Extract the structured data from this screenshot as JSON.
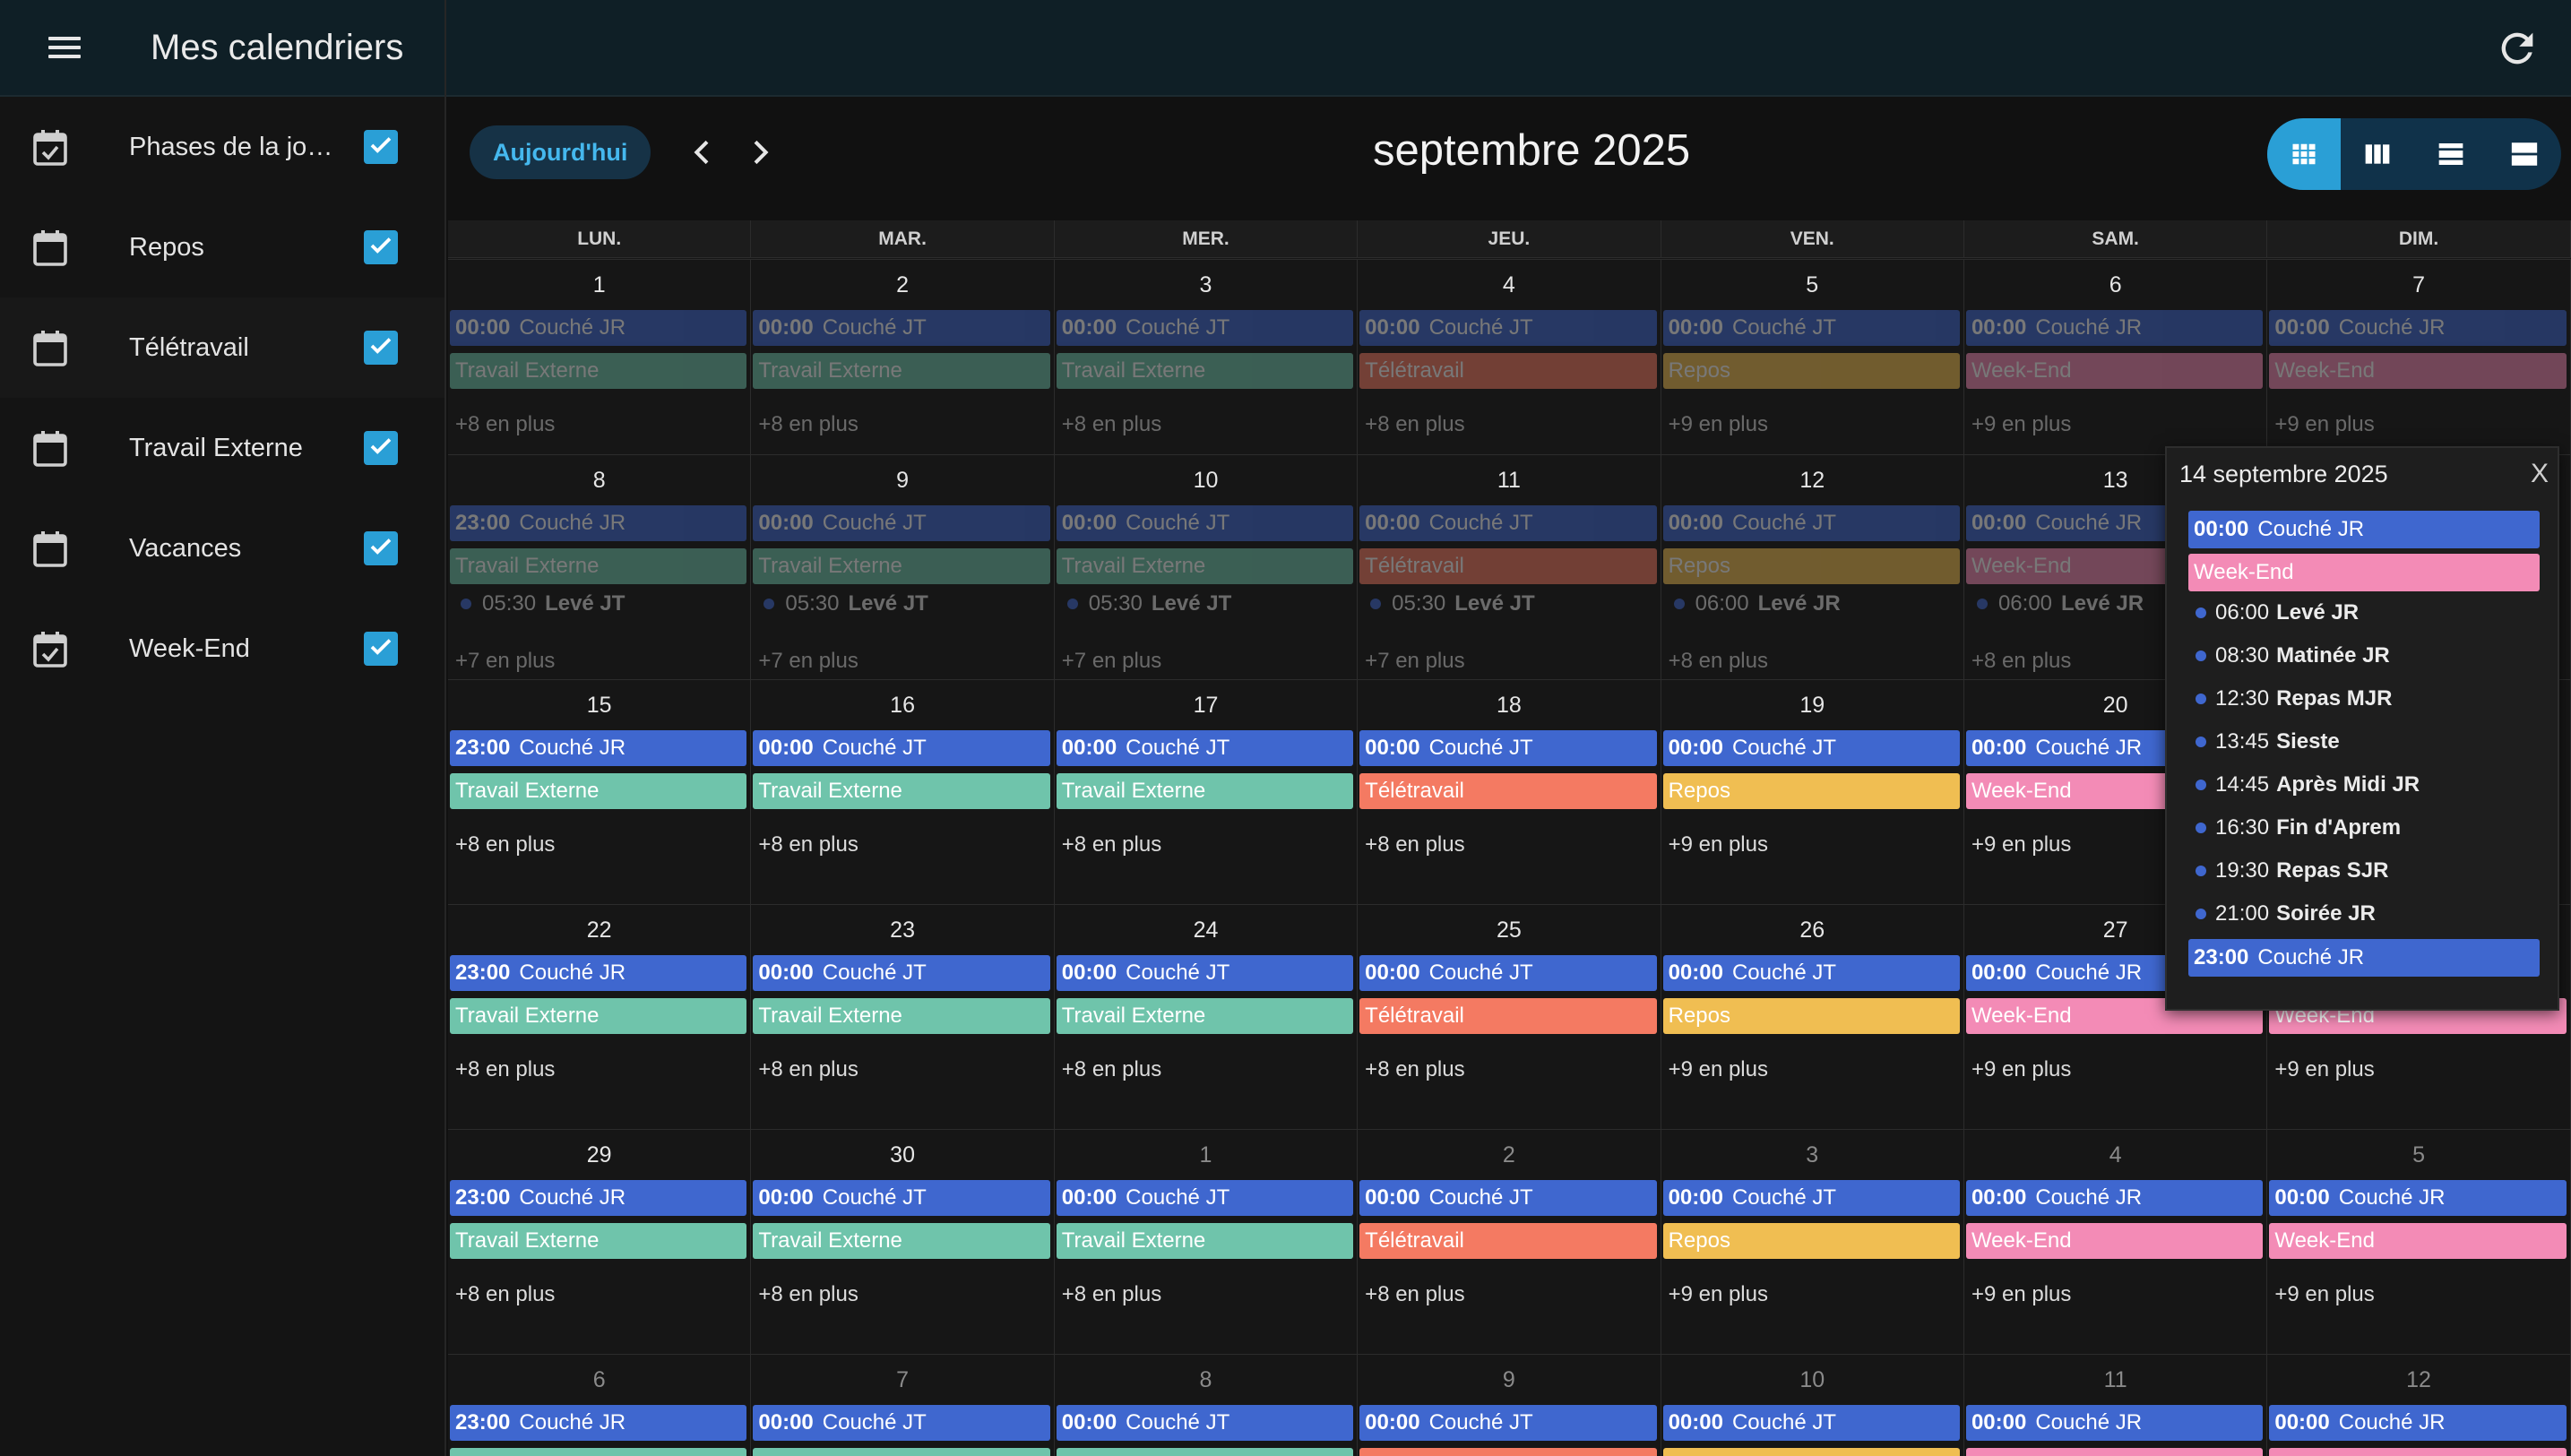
{
  "app": {
    "title": "Mes calendriers"
  },
  "sidebar": {
    "calendars": [
      {
        "label": "Phases de la jour...",
        "checked": true,
        "icon": "calendar-check-icon"
      },
      {
        "label": "Repos",
        "checked": true,
        "icon": "calendar-icon"
      },
      {
        "label": "Télétravail",
        "checked": true,
        "icon": "calendar-icon"
      },
      {
        "label": "Travail Externe",
        "checked": true,
        "icon": "calendar-icon"
      },
      {
        "label": "Vacances",
        "checked": true,
        "icon": "calendar-icon"
      },
      {
        "label": "Week-End",
        "checked": true,
        "icon": "calendar-check-icon"
      }
    ]
  },
  "toolbar": {
    "today_label": "Aujourd'hui",
    "month_title": "septembre 2025",
    "views": [
      "month-view-icon",
      "week-view-icon",
      "day-view-icon",
      "list-view-icon"
    ],
    "active_view": 0
  },
  "colors": {
    "accent": "#2a9fd6",
    "couche": "#3f67cf",
    "travail_externe": "#6fc4ab",
    "teletravail": "#f47a62",
    "repos": "#f0be52",
    "week_end": "#f38bb6"
  },
  "weekday_headers": [
    "LUN.",
    "MAR.",
    "MER.",
    "JEU.",
    "VEN.",
    "SAM.",
    "DIM."
  ],
  "weeks": [
    {
      "faded": true,
      "days": [
        {
          "num": "1",
          "ev1_time": "00:00",
          "ev1_title": "Couché JR",
          "ev2_title": "Travail Externe",
          "ev2_type": "travail_externe",
          "more": "+8 en plus"
        },
        {
          "num": "2",
          "ev1_time": "00:00",
          "ev1_title": "Couché JT",
          "ev2_title": "Travail Externe",
          "ev2_type": "travail_externe",
          "more": "+8 en plus"
        },
        {
          "num": "3",
          "ev1_time": "00:00",
          "ev1_title": "Couché JT",
          "ev2_title": "Travail Externe",
          "ev2_type": "travail_externe",
          "more": "+8 en plus"
        },
        {
          "num": "4",
          "ev1_time": "00:00",
          "ev1_title": "Couché JT",
          "ev2_title": "Télétravail",
          "ev2_type": "teletravail",
          "more": "+8 en plus"
        },
        {
          "num": "5",
          "ev1_time": "00:00",
          "ev1_title": "Couché JT",
          "ev2_title": "Repos",
          "ev2_type": "repos",
          "more": "+9 en plus"
        },
        {
          "num": "6",
          "ev1_time": "00:00",
          "ev1_title": "Couché JR",
          "ev2_title": "Week-End",
          "ev2_type": "week_end",
          "more": "+9 en plus"
        },
        {
          "num": "7",
          "ev1_time": "00:00",
          "ev1_title": "Couché JR",
          "ev2_title": "Week-End",
          "ev2_type": "week_end",
          "more": "+9 en plus"
        }
      ]
    },
    {
      "faded": true,
      "days": [
        {
          "num": "8",
          "ev1_time": "23:00",
          "ev1_title": "Couché JR",
          "ev2_title": "Travail Externe",
          "ev2_type": "travail_externe",
          "dot_time": "05:30",
          "dot_title": "Levé JT",
          "more": "+7 en plus"
        },
        {
          "num": "9",
          "ev1_time": "00:00",
          "ev1_title": "Couché JT",
          "ev2_title": "Travail Externe",
          "ev2_type": "travail_externe",
          "dot_time": "05:30",
          "dot_title": "Levé JT",
          "more": "+7 en plus"
        },
        {
          "num": "10",
          "ev1_time": "00:00",
          "ev1_title": "Couché JT",
          "ev2_title": "Travail Externe",
          "ev2_type": "travail_externe",
          "dot_time": "05:30",
          "dot_title": "Levé JT",
          "more": "+7 en plus"
        },
        {
          "num": "11",
          "ev1_time": "00:00",
          "ev1_title": "Couché JT",
          "ev2_title": "Télétravail",
          "ev2_type": "teletravail",
          "dot_time": "05:30",
          "dot_title": "Levé JT",
          "more": "+7 en plus"
        },
        {
          "num": "12",
          "ev1_time": "00:00",
          "ev1_title": "Couché JT",
          "ev2_title": "Repos",
          "ev2_type": "repos",
          "dot_time": "06:00",
          "dot_title": "Levé JR",
          "more": "+8 en plus"
        },
        {
          "num": "13",
          "ev1_time": "00:00",
          "ev1_title": "Couché JR",
          "ev2_title": "Week-End",
          "ev2_type": "week_end",
          "dot_time": "06:00",
          "dot_title": "Levé JR",
          "more": "+8 en plus"
        },
        {
          "num": "",
          "ev1_time": "",
          "ev1_title": "",
          "ev2_title": "",
          "ev2_type": "",
          "more": ""
        }
      ]
    },
    {
      "faded": false,
      "days": [
        {
          "num": "15",
          "ev1_time": "23:00",
          "ev1_title": "Couché JR",
          "ev2_title": "Travail Externe",
          "ev2_type": "travail_externe",
          "more": "+8 en plus"
        },
        {
          "num": "16",
          "ev1_time": "00:00",
          "ev1_title": "Couché JT",
          "ev2_title": "Travail Externe",
          "ev2_type": "travail_externe",
          "more": "+8 en plus"
        },
        {
          "num": "17",
          "ev1_time": "00:00",
          "ev1_title": "Couché JT",
          "ev2_title": "Travail Externe",
          "ev2_type": "travail_externe",
          "more": "+8 en plus"
        },
        {
          "num": "18",
          "ev1_time": "00:00",
          "ev1_title": "Couché JT",
          "ev2_title": "Télétravail",
          "ev2_type": "teletravail",
          "more": "+8 en plus"
        },
        {
          "num": "19",
          "ev1_time": "00:00",
          "ev1_title": "Couché JT",
          "ev2_title": "Repos",
          "ev2_type": "repos",
          "more": "+9 en plus"
        },
        {
          "num": "20",
          "ev1_time": "00:00",
          "ev1_title": "Couché JR",
          "ev2_title": "Week-End",
          "ev2_type": "week_end",
          "more": "+9 en plus"
        },
        {
          "num": "",
          "ev1_time": "",
          "ev1_title": "",
          "ev2_title": "",
          "ev2_type": "",
          "more": ""
        }
      ]
    },
    {
      "faded": false,
      "days": [
        {
          "num": "22",
          "ev1_time": "23:00",
          "ev1_title": "Couché JR",
          "ev2_title": "Travail Externe",
          "ev2_type": "travail_externe",
          "more": "+8 en plus"
        },
        {
          "num": "23",
          "ev1_time": "00:00",
          "ev1_title": "Couché JT",
          "ev2_title": "Travail Externe",
          "ev2_type": "travail_externe",
          "more": "+8 en plus"
        },
        {
          "num": "24",
          "ev1_time": "00:00",
          "ev1_title": "Couché JT",
          "ev2_title": "Travail Externe",
          "ev2_type": "travail_externe",
          "more": "+8 en plus"
        },
        {
          "num": "25",
          "ev1_time": "00:00",
          "ev1_title": "Couché JT",
          "ev2_title": "Télétravail",
          "ev2_type": "teletravail",
          "more": "+8 en plus"
        },
        {
          "num": "26",
          "ev1_time": "00:00",
          "ev1_title": "Couché JT",
          "ev2_title": "Repos",
          "ev2_type": "repos",
          "more": "+9 en plus"
        },
        {
          "num": "27",
          "ev1_time": "00:00",
          "ev1_title": "Couché JR",
          "ev2_title": "Week-End",
          "ev2_type": "week_end",
          "more": "+9 en plus"
        },
        {
          "num": "",
          "ev1_time": "",
          "ev1_title": "",
          "ev2_title": "Week-End",
          "ev2_type": "week_end",
          "more": "+9 en plus"
        }
      ]
    },
    {
      "faded": false,
      "days": [
        {
          "num": "29",
          "ev1_time": "23:00",
          "ev1_title": "Couché JR",
          "ev2_title": "Travail Externe",
          "ev2_type": "travail_externe",
          "more": "+8 en plus"
        },
        {
          "num": "30",
          "ev1_time": "00:00",
          "ev1_title": "Couché JT",
          "ev2_title": "Travail Externe",
          "ev2_type": "travail_externe",
          "more": "+8 en plus"
        },
        {
          "num": "1",
          "other": true,
          "ev1_time": "00:00",
          "ev1_title": "Couché JT",
          "ev2_title": "Travail Externe",
          "ev2_type": "travail_externe",
          "more": "+8 en plus"
        },
        {
          "num": "2",
          "other": true,
          "ev1_time": "00:00",
          "ev1_title": "Couché JT",
          "ev2_title": "Télétravail",
          "ev2_type": "teletravail",
          "more": "+8 en plus"
        },
        {
          "num": "3",
          "other": true,
          "ev1_time": "00:00",
          "ev1_title": "Couché JT",
          "ev2_title": "Repos",
          "ev2_type": "repos",
          "more": "+9 en plus"
        },
        {
          "num": "4",
          "other": true,
          "ev1_time": "00:00",
          "ev1_title": "Couché JR",
          "ev2_title": "Week-End",
          "ev2_type": "week_end",
          "more": "+9 en plus"
        },
        {
          "num": "5",
          "other": true,
          "ev1_time": "00:00",
          "ev1_title": "Couché JR",
          "ev2_title": "Week-End",
          "ev2_type": "week_end",
          "more": "+9 en plus"
        }
      ]
    },
    {
      "faded": false,
      "days": [
        {
          "num": "6",
          "other": true,
          "ev1_time": "23:00",
          "ev1_title": "Couché JR",
          "ev2_title": "",
          "ev2_type": "travail_externe",
          "more": ""
        },
        {
          "num": "7",
          "other": true,
          "ev1_time": "00:00",
          "ev1_title": "Couché JT",
          "ev2_title": "",
          "ev2_type": "travail_externe",
          "more": ""
        },
        {
          "num": "8",
          "other": true,
          "ev1_time": "00:00",
          "ev1_title": "Couché JT",
          "ev2_title": "",
          "ev2_type": "travail_externe",
          "more": ""
        },
        {
          "num": "9",
          "other": true,
          "ev1_time": "00:00",
          "ev1_title": "Couché JT",
          "ev2_title": "",
          "ev2_type": "teletravail",
          "more": ""
        },
        {
          "num": "10",
          "other": true,
          "ev1_time": "00:00",
          "ev1_title": "Couché JT",
          "ev2_title": "",
          "ev2_type": "repos",
          "more": ""
        },
        {
          "num": "11",
          "other": true,
          "ev1_time": "00:00",
          "ev1_title": "Couché JR",
          "ev2_title": "",
          "ev2_type": "week_end",
          "more": ""
        },
        {
          "num": "12",
          "other": true,
          "ev1_time": "00:00",
          "ev1_title": "Couché JR",
          "ev2_title": "",
          "ev2_type": "week_end",
          "more": ""
        }
      ]
    }
  ],
  "popover": {
    "title": "14 septembre 2025",
    "close_label": "X",
    "events": [
      {
        "kind": "bar",
        "time": "00:00",
        "title": "Couché JR",
        "type": "couche"
      },
      {
        "kind": "bar",
        "time": "",
        "title": "Week-End",
        "type": "week_end"
      },
      {
        "kind": "dot",
        "time": "06:00",
        "title": "Levé JR"
      },
      {
        "kind": "dot",
        "time": "08:30",
        "title": "Matinée JR"
      },
      {
        "kind": "dot",
        "time": "12:30",
        "title": "Repas MJR"
      },
      {
        "kind": "dot",
        "time": "13:45",
        "title": "Sieste"
      },
      {
        "kind": "dot",
        "time": "14:45",
        "title": "Après Midi JR"
      },
      {
        "kind": "dot",
        "time": "16:30",
        "title": "Fin d'Aprem"
      },
      {
        "kind": "dot",
        "time": "19:30",
        "title": "Repas SJR"
      },
      {
        "kind": "dot",
        "time": "21:00",
        "title": "Soirée JR"
      },
      {
        "kind": "bar",
        "time": "23:00",
        "title": "Couché JR",
        "type": "couche"
      }
    ]
  }
}
